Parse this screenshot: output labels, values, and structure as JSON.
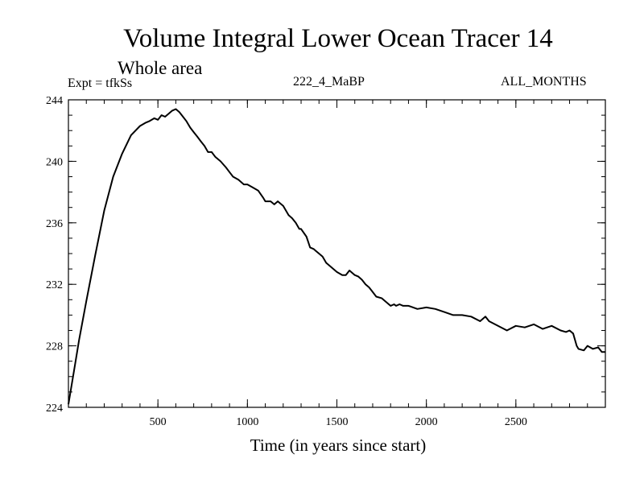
{
  "chart_data": {
    "type": "line",
    "title": "Volume Integral Lower Ocean Tracer 14",
    "subtitle": "Whole area",
    "experiment_label": "Expt = tfkSs",
    "center_label": "222_4_MaBP",
    "right_label": "ALL_MONTHS",
    "xlabel": "Time (in years since start)",
    "ylabel": "",
    "xlim": [
      0,
      3000
    ],
    "ylim": [
      224,
      244
    ],
    "xticks": [
      500,
      1000,
      1500,
      2000,
      2500
    ],
    "xtick_labels": [
      "500",
      "1000",
      "1500",
      "2000",
      "2500"
    ],
    "yticks": [
      224,
      228,
      232,
      236,
      240,
      244
    ],
    "ytick_labels": [
      "224",
      "228",
      "232",
      "236",
      "240",
      "244"
    ],
    "x_minor_step": 100,
    "y_minor_step": 1,
    "grid": false,
    "series": [
      {
        "name": "Volume integral",
        "color": "#000000",
        "x": [
          0,
          30,
          60,
          100,
          150,
          200,
          250,
          300,
          350,
          400,
          430,
          450,
          480,
          500,
          520,
          540,
          560,
          580,
          600,
          620,
          640,
          660,
          680,
          700,
          720,
          740,
          760,
          780,
          800,
          820,
          850,
          880,
          900,
          920,
          950,
          980,
          1000,
          1030,
          1060,
          1090,
          1100,
          1130,
          1150,
          1170,
          1200,
          1230,
          1250,
          1270,
          1290,
          1300,
          1330,
          1350,
          1370,
          1380,
          1400,
          1420,
          1440,
          1460,
          1500,
          1530,
          1550,
          1570,
          1600,
          1620,
          1640,
          1660,
          1680,
          1700,
          1720,
          1750,
          1780,
          1800,
          1820,
          1830,
          1850,
          1870,
          1900,
          1950,
          2000,
          2050,
          2100,
          2150,
          2200,
          2250,
          2300,
          2330,
          2350,
          2400,
          2450,
          2500,
          2550,
          2600,
          2650,
          2700,
          2750,
          2780,
          2800,
          2820,
          2840,
          2850,
          2880,
          2900,
          2930,
          2960,
          2980,
          3000
        ],
        "values": [
          224.2,
          226.3,
          228.4,
          230.9,
          233.9,
          236.8,
          239.0,
          240.5,
          241.7,
          242.3,
          242.5,
          242.6,
          242.8,
          242.7,
          243.0,
          242.9,
          243.1,
          243.3,
          243.4,
          243.2,
          242.9,
          242.6,
          242.2,
          241.9,
          241.6,
          241.3,
          241.0,
          240.6,
          240.6,
          240.3,
          240.0,
          239.6,
          239.3,
          239.0,
          238.8,
          238.5,
          238.5,
          238.3,
          238.1,
          237.6,
          237.4,
          237.4,
          237.2,
          237.4,
          237.1,
          236.5,
          236.3,
          236.0,
          235.6,
          235.6,
          235.1,
          234.4,
          234.3,
          234.2,
          234.0,
          233.8,
          233.4,
          233.2,
          232.8,
          232.6,
          232.6,
          232.9,
          232.6,
          232.5,
          232.3,
          232.0,
          231.8,
          231.5,
          231.2,
          231.1,
          230.8,
          230.6,
          230.7,
          230.6,
          230.7,
          230.6,
          230.6,
          230.4,
          230.5,
          230.4,
          230.2,
          230.0,
          230.0,
          229.9,
          229.6,
          229.9,
          229.6,
          229.3,
          229.0,
          229.3,
          229.2,
          229.4,
          229.1,
          229.3,
          229.0,
          228.9,
          229.0,
          228.8,
          228.0,
          227.8,
          227.7,
          228.0,
          227.8,
          227.9,
          227.6,
          227.6
        ]
      }
    ]
  }
}
